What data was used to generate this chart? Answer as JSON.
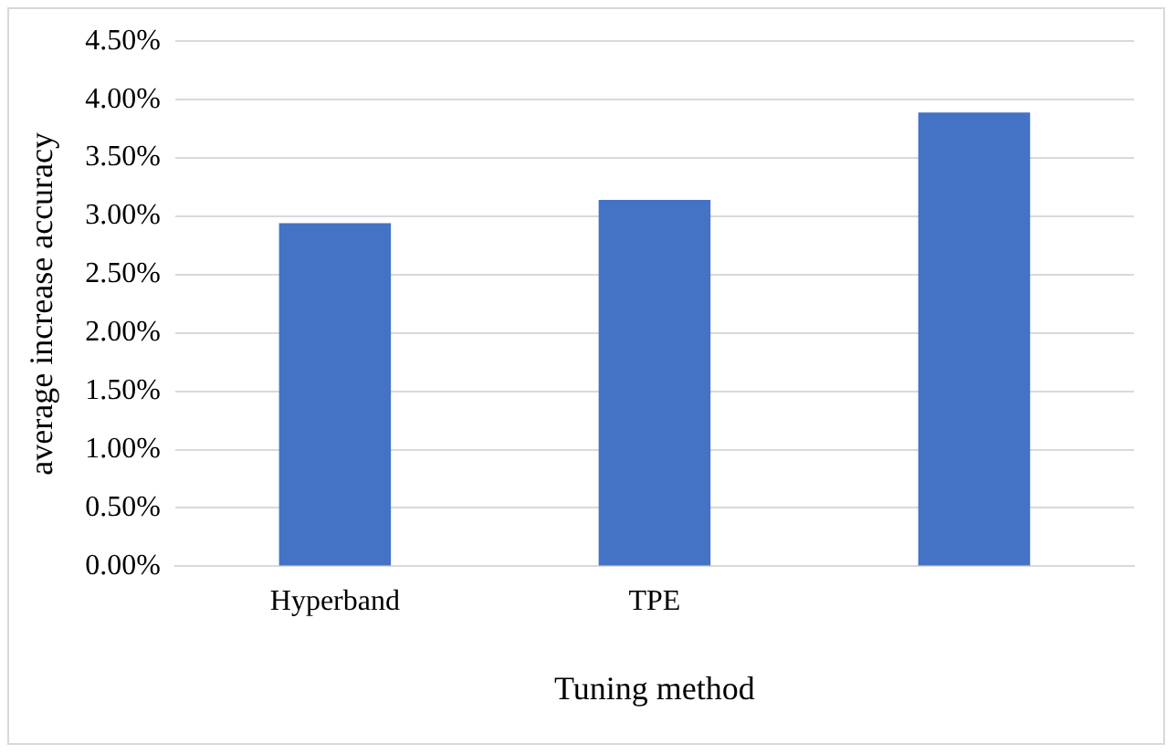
{
  "chart_data": {
    "type": "bar",
    "xlabel": "Tuning method",
    "ylabel": "average increase accuracy",
    "categories": [
      "Hyperband",
      "TPE",
      null
    ],
    "values": [
      2.94,
      3.14,
      3.89
    ],
    "color": "#4472c4",
    "ylim": [
      0,
      4.5
    ],
    "yticks": [
      {
        "value": 0,
        "label": "0.00%"
      },
      {
        "value": 0.5,
        "label": "0.50%"
      },
      {
        "value": 1,
        "label": "1.00%"
      },
      {
        "value": 1.5,
        "label": "1.50%"
      },
      {
        "value": 2,
        "label": "2.00%"
      },
      {
        "value": 2.5,
        "label": "2.50%"
      },
      {
        "value": 3,
        "label": "3.00%"
      },
      {
        "value": 3.5,
        "label": "3.50%"
      },
      {
        "value": 4,
        "label": "4.00%"
      },
      {
        "value": 4.5,
        "label": "4.50%"
      }
    ],
    "grid": "y",
    "legend": false
  }
}
